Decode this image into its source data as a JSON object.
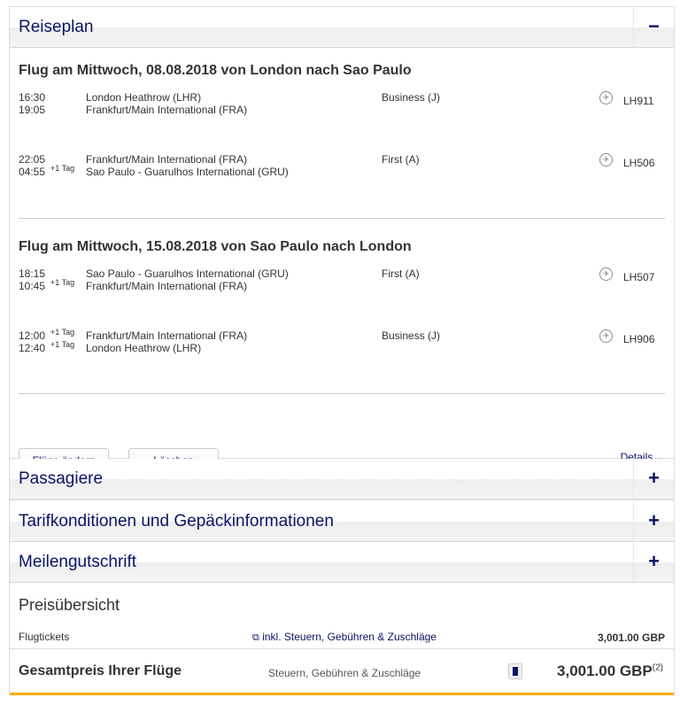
{
  "itinerary": {
    "title": "Reiseplan",
    "toggle": "−",
    "flights": [
      {
        "title": "Flug am Mittwoch, 08.08.2018 von London nach Sao Paulo",
        "segments": [
          {
            "dep_time": "16:30",
            "arr_time": "19:05",
            "dep_day": "",
            "arr_day": "",
            "from": "London Heathrow (LHR)",
            "to": "Frankfurt/Main International (FRA)",
            "cabin": "Business (J)",
            "flight": "LH911"
          },
          {
            "dep_time": "22:05",
            "arr_time": "04:55",
            "dep_day": "",
            "arr_day": "+1 Tag",
            "from": "Frankfurt/Main International (FRA)",
            "to": "Sao Paulo - Guarulhos International (GRU)",
            "cabin": "First (A)",
            "flight": "LH506"
          }
        ]
      },
      {
        "title": "Flug am Mittwoch, 15.08.2018 von Sao Paulo nach London",
        "segments": [
          {
            "dep_time": "18:15",
            "arr_time": "10:45",
            "dep_day": "",
            "arr_day": "+1 Tag",
            "from": "Sao Paulo - Guarulhos International (GRU)",
            "to": "Frankfurt/Main International (FRA)",
            "cabin": "First (A)",
            "flight": "LH507"
          },
          {
            "dep_time": "12:00",
            "arr_time": "12:40",
            "dep_day": "+1 Tag",
            "arr_day": "+1 Tag",
            "from": "Frankfurt/Main International (FRA)",
            "to": "London Heathrow (LHR)",
            "cabin": "Business (J)",
            "flight": "LH906"
          }
        ]
      }
    ],
    "change_button": "Flüge ändern",
    "delete_button": "Löschen",
    "details_link": "Details"
  },
  "sections": [
    {
      "title": "Passagiere",
      "toggle": "+"
    },
    {
      "title": "Tarifkonditionen und Gepäckinformationen",
      "toggle": "+"
    },
    {
      "title": "Meilengutschrift",
      "toggle": "+"
    }
  ],
  "price": {
    "title": "Preisübersicht",
    "tickets_label": "Flugtickets",
    "tickets_info": "inkl. Steuern, Gebühren & Zuschläge",
    "tickets_amount": "3,001.00 GBP",
    "total_label": "Gesamtpreis Ihrer Flüge",
    "total_info": "Steuern, Gebühren & Zuschläge",
    "total_amount": "3,001.00 GBP",
    "total_note": "(2)"
  },
  "colors": {
    "accent": "#0a1464",
    "highlight": "#f9b000"
  }
}
